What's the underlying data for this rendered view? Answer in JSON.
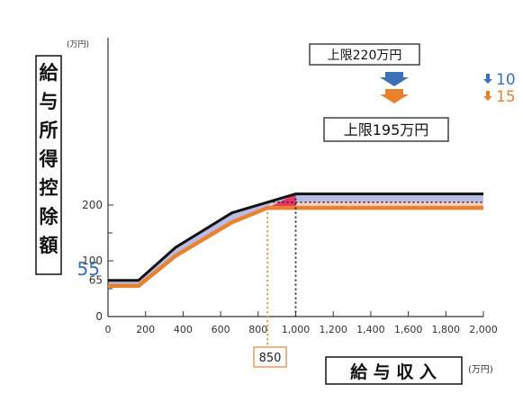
{
  "chart_data": {
    "type": "line",
    "ylabel": "給与所得控除額",
    "xlabel": "給与収入",
    "x_unit": "(万円)",
    "y_unit": "(万円)",
    "xlim": [
      0,
      2000
    ],
    "ylim": [
      0,
      240
    ],
    "x_ticks": [
      0,
      200,
      400,
      600,
      800,
      1000,
      1200,
      1400,
      1600,
      1800,
      2000
    ],
    "x_tick_labels": [
      "0",
      "200",
      "400",
      "600",
      "800",
      "1,000",
      "1,200",
      "1,400",
      "1,600",
      "1,800",
      "2,000"
    ],
    "y_ticks": [
      0,
      65,
      100,
      200
    ],
    "y_tick_labels": [
      "0",
      "65",
      "100",
      "200"
    ],
    "series": [
      {
        "key": "old",
        "color": "#111111",
        "x": [
          0,
          162.5,
          360,
          660,
          1000,
          2000
        ],
        "y": [
          65,
          65,
          124,
          186,
          220,
          220
        ]
      },
      {
        "key": "new",
        "color": "#e8822e",
        "x": [
          0,
          162.5,
          360,
          660,
          850,
          2000
        ],
        "y": [
          55,
          55,
          109,
          169,
          195,
          195
        ]
      }
    ],
    "fill_colors": {
      "between": "#b9bde6",
      "cap_diff": "#f8cfc2",
      "red_triangle": "#e8336b"
    },
    "annotations": {
      "cap_old": "上限220万円",
      "cap_new": "上限195万円",
      "drop_10": "10",
      "drop_15": "15",
      "marker_850": "850",
      "start_new": "55"
    },
    "blue_color": "#3a70b5",
    "orange_color": "#e8822e"
  }
}
